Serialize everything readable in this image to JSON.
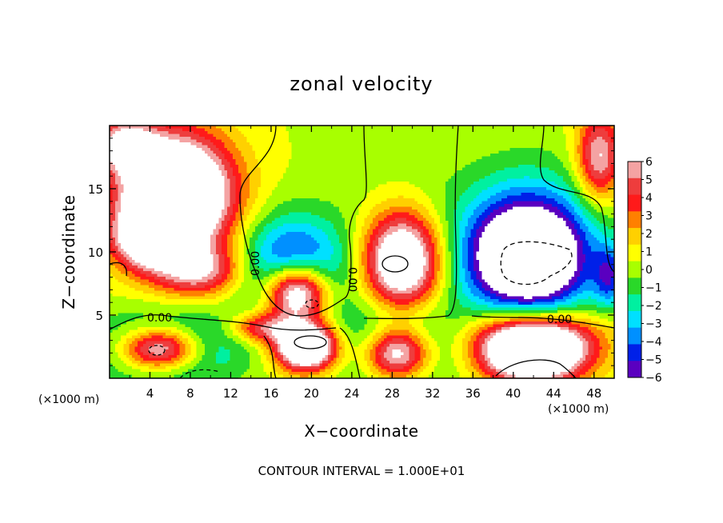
{
  "chart_data": {
    "type": "heatmap",
    "title": "zonal velocity",
    "xlabel": "X−coordinate",
    "ylabel": "Z−coordinate",
    "x_unit": "(×1000 m)",
    "z_unit": "(×1000 m)",
    "xlim": [
      0,
      50
    ],
    "ylim": [
      0,
      20
    ],
    "x_ticks": [
      "4",
      "8",
      "12",
      "16",
      "20",
      "24",
      "28",
      "32",
      "36",
      "40",
      "44",
      "48"
    ],
    "y_ticks": [
      "5",
      "10",
      "15"
    ],
    "colorbar": {
      "range": [
        -6,
        6
      ],
      "ticks": [
        "6",
        "5",
        "4",
        "3",
        "2",
        "1",
        "0",
        "−1",
        "−2",
        "−3",
        "−4",
        "−5",
        "−6"
      ],
      "colors": [
        "#f4a3a3",
        "#ee3d3d",
        "#ff1a1a",
        "#ff8000",
        "#ffd000",
        "#ffff00",
        "#a8ff00",
        "#2ad829",
        "#00f0a0",
        "#00e0ff",
        "#0090ff",
        "#0020e8",
        "#5a00c0"
      ]
    },
    "contour_labels": [
      "0.00",
      "0.00",
      "0.00",
      "0.00"
    ],
    "footer": "CONTOUR INTERVAL = 1.000E+01",
    "blobs": [
      {
        "x": 6.5,
        "z": 14.5,
        "rx": 5.5,
        "rz": 4.6,
        "sign": 1,
        "amp": 13
      },
      {
        "x": 3.5,
        "z": 11,
        "rx": 3.2,
        "rz": 2.2,
        "sign": 1,
        "amp": 6
      },
      {
        "x": 9.0,
        "z": 8.5,
        "rx": 4.5,
        "rz": 2.0,
        "sign": 1,
        "amp": 5
      },
      {
        "x": 1.5,
        "z": 18.5,
        "rx": 3.0,
        "rz": 2.0,
        "sign": 1,
        "amp": 6
      },
      {
        "x": 18.5,
        "z": 6.8,
        "rx": 3.2,
        "rz": 2.4,
        "sign": 1,
        "amp": 12
      },
      {
        "x": 29.0,
        "z": 9.2,
        "rx": 4.2,
        "rz": 4.2,
        "sign": 1,
        "amp": 14
      },
      {
        "x": 41.5,
        "z": 9.5,
        "rx": 5.0,
        "rz": 3.5,
        "sign": -1,
        "amp": 5
      },
      {
        "x": 41.5,
        "z": 9.5,
        "rx": 4.0,
        "rz": 3.0,
        "sign": 1,
        "amp": 0
      },
      {
        "x": 18.0,
        "z": 8.5,
        "rx": 5.0,
        "rz": 4.0,
        "sign": -1,
        "amp": 7
      },
      {
        "x": 29.0,
        "z": 9.0,
        "rx": 5.6,
        "rz": 5.6,
        "sign": -1,
        "amp": 5
      },
      {
        "x": 41.5,
        "z": 10.0,
        "rx": 6.5,
        "rz": 5.5,
        "sign": -1,
        "amp": 8
      },
      {
        "x": 5.0,
        "z": 2.3,
        "rx": 4.2,
        "rz": 1.8,
        "sign": 1,
        "amp": 12
      },
      {
        "x": 5.5,
        "z": 2.3,
        "rx": 6.5,
        "rz": 2.6,
        "sign": -1,
        "amp": 7
      },
      {
        "x": 19.5,
        "z": 2.5,
        "rx": 3.0,
        "rz": 1.8,
        "sign": 1,
        "amp": 12
      },
      {
        "x": 28.5,
        "z": 2.0,
        "rx": 3.5,
        "rz": 2.2,
        "sign": 1,
        "amp": 12
      },
      {
        "x": 28.5,
        "z": 2.3,
        "rx": 5.2,
        "rz": 3.0,
        "sign": -1,
        "amp": 6
      },
      {
        "x": 42.0,
        "z": 2.0,
        "rx": 5.0,
        "rz": 2.3,
        "sign": 1,
        "amp": 12
      },
      {
        "x": 42.0,
        "z": 3.5,
        "rx": 7.0,
        "rz": 2.2,
        "sign": 1,
        "amp": 4
      },
      {
        "x": 48.5,
        "z": 17.5,
        "rx": 2.2,
        "rz": 3.5,
        "sign": 1,
        "amp": 6
      },
      {
        "x": 49.5,
        "z": 8.0,
        "rx": 1.5,
        "rz": 2.5,
        "sign": -1,
        "amp": 4
      },
      {
        "x": 15.0,
        "z": 4.0,
        "rx": 3.0,
        "rz": 1.2,
        "sign": 1,
        "amp": 5
      }
    ]
  }
}
